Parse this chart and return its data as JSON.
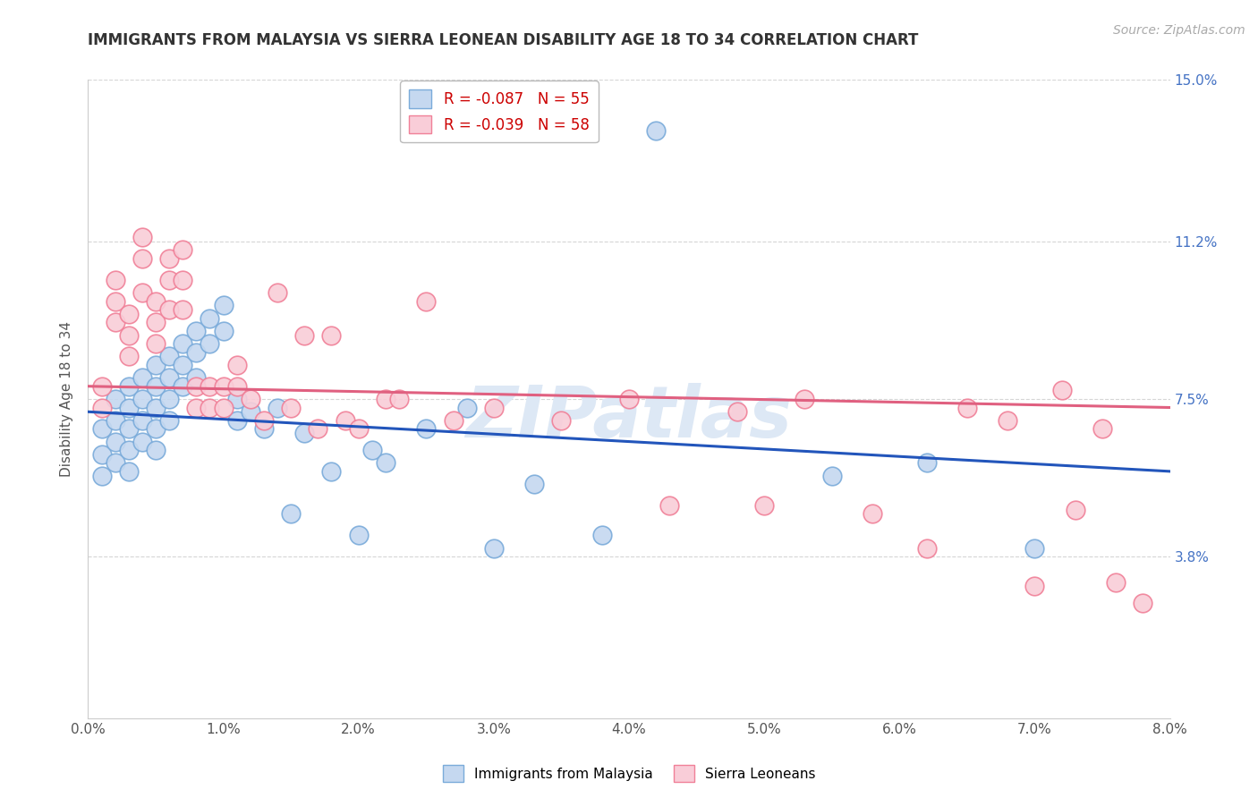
{
  "title": "IMMIGRANTS FROM MALAYSIA VS SIERRA LEONEAN DISABILITY AGE 18 TO 34 CORRELATION CHART",
  "source": "Source: ZipAtlas.com",
  "ylabel": "Disability Age 18 to 34",
  "xlim": [
    0.0,
    0.08
  ],
  "ylim": [
    0.0,
    0.15
  ],
  "xtick_labels": [
    "0.0%",
    "1.0%",
    "2.0%",
    "3.0%",
    "4.0%",
    "5.0%",
    "6.0%",
    "7.0%",
    "8.0%"
  ],
  "xtick_vals": [
    0.0,
    0.01,
    0.02,
    0.03,
    0.04,
    0.05,
    0.06,
    0.07,
    0.08
  ],
  "ytick_vals": [
    0.038,
    0.075,
    0.112,
    0.15
  ],
  "ytick_labels": [
    "3.8%",
    "7.5%",
    "11.2%",
    "15.0%"
  ],
  "legend_r1": "R = -0.087",
  "legend_n1": "N = 55",
  "legend_r2": "R = -0.039",
  "legend_n2": "N = 58",
  "series1_label": "Immigrants from Malaysia",
  "series2_label": "Sierra Leoneans",
  "series1_color": "#c5d8f0",
  "series2_color": "#f9cdd8",
  "series1_edge_color": "#7aabda",
  "series2_edge_color": "#f08098",
  "trendline1_color": "#2255bb",
  "trendline2_color": "#e06080",
  "background_color": "#ffffff",
  "grid_color": "#cccccc",
  "title_color": "#333333",
  "series1_x": [
    0.001,
    0.001,
    0.001,
    0.002,
    0.002,
    0.002,
    0.002,
    0.003,
    0.003,
    0.003,
    0.003,
    0.003,
    0.004,
    0.004,
    0.004,
    0.004,
    0.005,
    0.005,
    0.005,
    0.005,
    0.005,
    0.006,
    0.006,
    0.006,
    0.006,
    0.007,
    0.007,
    0.007,
    0.008,
    0.008,
    0.008,
    0.009,
    0.009,
    0.01,
    0.01,
    0.011,
    0.011,
    0.012,
    0.013,
    0.014,
    0.015,
    0.016,
    0.018,
    0.02,
    0.021,
    0.022,
    0.025,
    0.028,
    0.03,
    0.033,
    0.038,
    0.042,
    0.055,
    0.062,
    0.07
  ],
  "series1_y": [
    0.068,
    0.062,
    0.057,
    0.075,
    0.07,
    0.065,
    0.06,
    0.078,
    0.073,
    0.068,
    0.063,
    0.058,
    0.08,
    0.075,
    0.07,
    0.065,
    0.083,
    0.078,
    0.073,
    0.068,
    0.063,
    0.085,
    0.08,
    0.075,
    0.07,
    0.088,
    0.083,
    0.078,
    0.091,
    0.086,
    0.08,
    0.094,
    0.088,
    0.097,
    0.091,
    0.075,
    0.07,
    0.072,
    0.068,
    0.073,
    0.048,
    0.067,
    0.058,
    0.043,
    0.063,
    0.06,
    0.068,
    0.073,
    0.04,
    0.055,
    0.043,
    0.138,
    0.057,
    0.06,
    0.04
  ],
  "series2_x": [
    0.001,
    0.001,
    0.002,
    0.002,
    0.002,
    0.003,
    0.003,
    0.003,
    0.004,
    0.004,
    0.004,
    0.005,
    0.005,
    0.005,
    0.006,
    0.006,
    0.006,
    0.007,
    0.007,
    0.007,
    0.008,
    0.008,
    0.009,
    0.009,
    0.01,
    0.01,
    0.011,
    0.011,
    0.012,
    0.013,
    0.014,
    0.015,
    0.016,
    0.017,
    0.018,
    0.019,
    0.02,
    0.022,
    0.023,
    0.025,
    0.027,
    0.03,
    0.035,
    0.04,
    0.043,
    0.048,
    0.05,
    0.053,
    0.058,
    0.062,
    0.065,
    0.068,
    0.07,
    0.072,
    0.073,
    0.075,
    0.076,
    0.078
  ],
  "series2_y": [
    0.078,
    0.073,
    0.103,
    0.098,
    0.093,
    0.095,
    0.09,
    0.085,
    0.113,
    0.108,
    0.1,
    0.098,
    0.093,
    0.088,
    0.108,
    0.103,
    0.096,
    0.11,
    0.103,
    0.096,
    0.078,
    0.073,
    0.078,
    0.073,
    0.078,
    0.073,
    0.083,
    0.078,
    0.075,
    0.07,
    0.1,
    0.073,
    0.09,
    0.068,
    0.09,
    0.07,
    0.068,
    0.075,
    0.075,
    0.098,
    0.07,
    0.073,
    0.07,
    0.075,
    0.05,
    0.072,
    0.05,
    0.075,
    0.048,
    0.04,
    0.073,
    0.07,
    0.031,
    0.077,
    0.049,
    0.068,
    0.032,
    0.027
  ],
  "trendline1_x0": 0.0,
  "trendline1_x1": 0.08,
  "trendline1_y0": 0.072,
  "trendline1_y1": 0.058,
  "trendline2_x0": 0.0,
  "trendline2_x1": 0.08,
  "trendline2_y0": 0.078,
  "trendline2_y1": 0.073,
  "watermark_text": "ZIPatlas",
  "watermark_color": "#dde8f5"
}
